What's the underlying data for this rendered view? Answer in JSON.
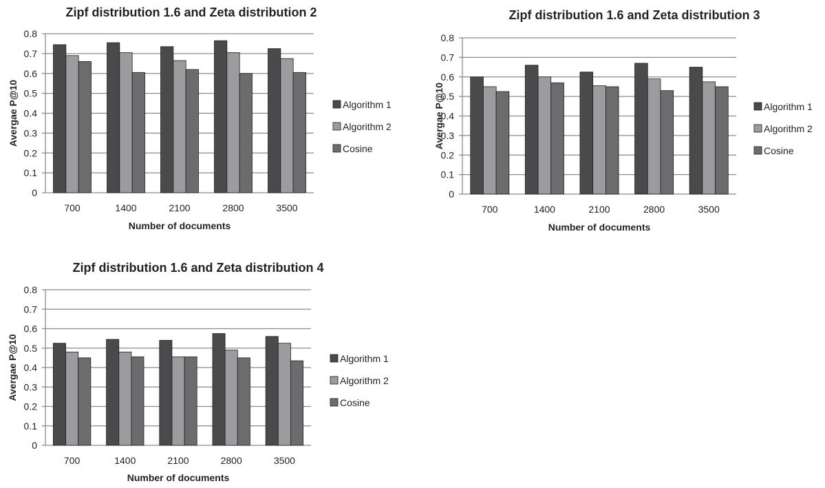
{
  "chart_data": [
    {
      "type": "bar",
      "title": "Zipf distribution 1.6 and Zeta distribution 2",
      "xlabel": "Number of documents",
      "ylabel": "Avergae P@10",
      "categories": [
        "700",
        "1400",
        "2100",
        "2800",
        "3500"
      ],
      "yticks": [
        "0",
        "0.1",
        "0.2",
        "0.3",
        "0.4",
        "0.5",
        "0.6",
        "0.7",
        "0.8"
      ],
      "ylim": [
        0,
        0.8
      ],
      "grid": true,
      "legend_position": "right",
      "series": [
        {
          "name": "Algorithm 1",
          "color": "#4a4a4d",
          "values": [
            0.745,
            0.755,
            0.735,
            0.765,
            0.725
          ]
        },
        {
          "name": "Algorithm 2",
          "color": "#9c9c9f",
          "values": [
            0.69,
            0.705,
            0.665,
            0.705,
            0.675
          ]
        },
        {
          "name": "Cosine",
          "color": "#6c6c6f",
          "values": [
            0.66,
            0.605,
            0.62,
            0.6,
            0.605
          ]
        }
      ]
    },
    {
      "type": "bar",
      "title": "Zipf distribution 1.6 and Zeta distribution 3",
      "xlabel": "Number of documents",
      "ylabel": "Avergae P@10",
      "categories": [
        "700",
        "1400",
        "2100",
        "2800",
        "3500"
      ],
      "yticks": [
        "0",
        "0.1",
        "0.2",
        "0.3",
        "0.4",
        "0.5",
        "0.6",
        "0.7",
        "0.8"
      ],
      "ylim": [
        0,
        0.8
      ],
      "grid": true,
      "legend_position": "right",
      "series": [
        {
          "name": "Algorithm 1",
          "color": "#4a4a4d",
          "values": [
            0.6,
            0.66,
            0.625,
            0.67,
            0.65
          ]
        },
        {
          "name": "Algorithm 2",
          "color": "#9c9c9f",
          "values": [
            0.55,
            0.6,
            0.555,
            0.59,
            0.575
          ]
        },
        {
          "name": "Cosine",
          "color": "#6c6c6f",
          "values": [
            0.525,
            0.57,
            0.55,
            0.53,
            0.55
          ]
        }
      ]
    },
    {
      "type": "bar",
      "title": "Zipf distribution 1.6 and Zeta distribution 4",
      "xlabel": "Number of documents",
      "ylabel": "Avergae P@10",
      "categories": [
        "700",
        "1400",
        "2100",
        "2800",
        "3500"
      ],
      "yticks": [
        "0",
        "0.1",
        "0.2",
        "0.3",
        "0.4",
        "0.5",
        "0.6",
        "0.7",
        "0.8"
      ],
      "ylim": [
        0,
        0.8
      ],
      "grid": true,
      "legend_position": "right",
      "series": [
        {
          "name": "Algorithm 1",
          "color": "#4a4a4d",
          "values": [
            0.525,
            0.545,
            0.54,
            0.575,
            0.56
          ]
        },
        {
          "name": "Algorithm 2",
          "color": "#9c9c9f",
          "values": [
            0.48,
            0.48,
            0.455,
            0.49,
            0.525
          ]
        },
        {
          "name": "Cosine",
          "color": "#6c6c6f",
          "values": [
            0.45,
            0.455,
            0.455,
            0.45,
            0.435
          ]
        }
      ]
    }
  ]
}
